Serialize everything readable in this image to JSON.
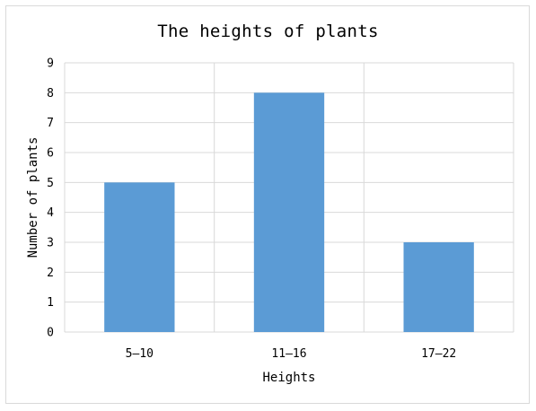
{
  "chart_data": {
    "type": "bar",
    "title": "The heights of plants",
    "xlabel": "Heights",
    "ylabel": "Number of plants",
    "categories": [
      "5—10",
      "11—16",
      "17—22"
    ],
    "values": [
      5,
      8,
      3
    ],
    "ylim": [
      0,
      9
    ],
    "yticks": [
      0,
      1,
      2,
      3,
      4,
      5,
      6,
      7,
      8,
      9
    ],
    "grid": true,
    "bar_color": "#5b9bd5",
    "grid_color": "#d9d9d9"
  }
}
